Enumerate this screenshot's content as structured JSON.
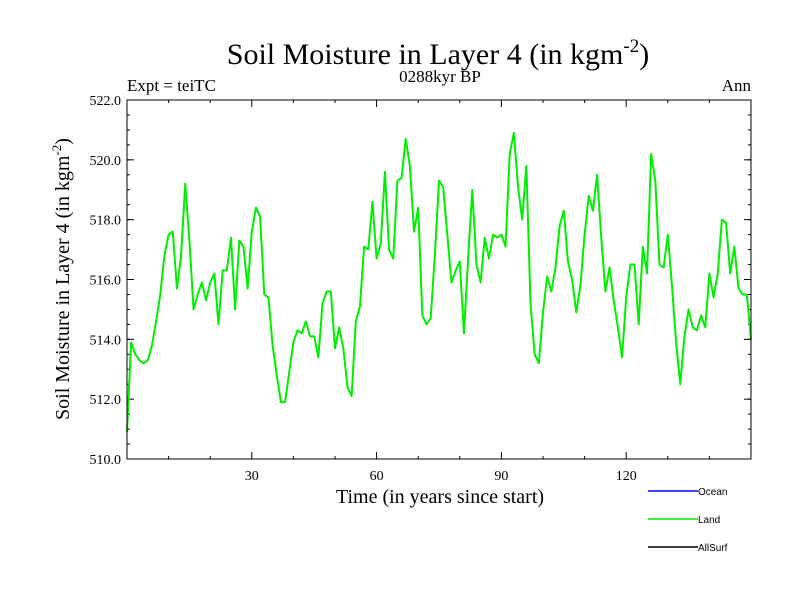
{
  "chart_data": {
    "type": "line",
    "title": "Soil Moisture in Layer 4 (in kgm",
    "title_sup": "-2",
    "title_end": ")",
    "subtitle": "0288kyr BP",
    "left_annotation": "Expt = teiTC",
    "right_annotation": "Ann",
    "xlabel": "Time (in years since start)",
    "ylabel": "Soil Moisture in Layer 4 (in kgm",
    "ylabel_sup": "-2",
    "ylabel_end": ")",
    "xlim": [
      0,
      150
    ],
    "ylim": [
      510,
      522
    ],
    "x_ticks": [
      30,
      60,
      90,
      120
    ],
    "x_tick_labels": [
      "30",
      "60",
      "90",
      "120"
    ],
    "y_ticks": [
      510,
      512,
      514,
      516,
      518,
      520,
      522
    ],
    "y_tick_labels": [
      "510.0",
      "512.0",
      "514.0",
      "516.0",
      "518.0",
      "520.0",
      "522.0"
    ],
    "legend": [
      {
        "name": "Ocean",
        "color": "#0000ff"
      },
      {
        "name": "Land",
        "color": "#00ee00"
      },
      {
        "name": "AllSurf",
        "color": "#000000"
      }
    ],
    "series": [
      {
        "name": "Land",
        "color": "#00ee00",
        "x_start": 0,
        "x_step": 1,
        "values": [
          510.9,
          513.9,
          513.5,
          513.3,
          513.2,
          513.3,
          513.8,
          514.6,
          515.5,
          516.8,
          517.5,
          517.6,
          515.7,
          516.8,
          519.2,
          517.3,
          515.0,
          515.5,
          515.9,
          515.3,
          515.9,
          516.2,
          514.5,
          516.3,
          516.3,
          517.4,
          515.0,
          517.3,
          517.1,
          515.7,
          517.6,
          518.4,
          518.1,
          515.5,
          515.4,
          513.8,
          512.8,
          511.9,
          511.9,
          512.9,
          513.9,
          514.3,
          514.2,
          514.6,
          514.1,
          514.1,
          513.4,
          515.2,
          515.6,
          515.6,
          513.7,
          514.4,
          513.7,
          512.4,
          512.1,
          514.6,
          515.1,
          517.1,
          517.0,
          518.6,
          516.7,
          517.2,
          519.6,
          517.0,
          516.7,
          519.3,
          519.4,
          520.7,
          519.8,
          517.6,
          518.4,
          514.8,
          514.5,
          514.7,
          516.8,
          519.3,
          519.1,
          517.5,
          515.9,
          516.3,
          516.6,
          514.2,
          516.7,
          519.0,
          516.5,
          515.9,
          517.4,
          516.7,
          517.5,
          517.4,
          517.5,
          517.1,
          520.2,
          520.9,
          519.1,
          518.0,
          519.8,
          515.2,
          513.5,
          513.2,
          514.9,
          516.1,
          515.6,
          516.4,
          517.8,
          518.3,
          516.6,
          516.0,
          514.9,
          515.8,
          517.5,
          518.8,
          518.3,
          519.5,
          517.4,
          515.6,
          516.4,
          515.3,
          514.4,
          513.4,
          515.4,
          516.5,
          516.5,
          514.5,
          517.1,
          516.2,
          520.2,
          519.3,
          516.5,
          516.4,
          517.5,
          515.8,
          513.9,
          512.5,
          514.1,
          515.0,
          514.4,
          514.3,
          514.8,
          514.4,
          516.2,
          515.4,
          516.2,
          518.0,
          517.9,
          516.2,
          517.1,
          515.7,
          515.5,
          515.5,
          514.0
        ]
      }
    ]
  }
}
